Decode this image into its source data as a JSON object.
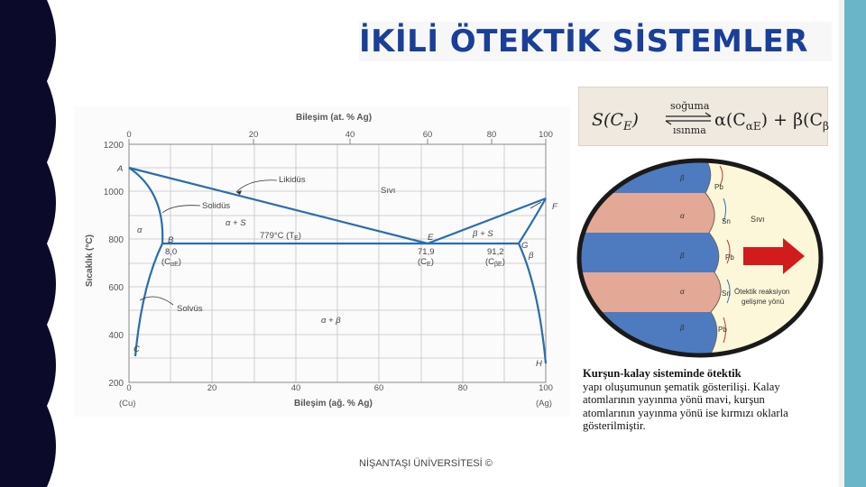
{
  "title": "İKİLİ ÖTEKTİK SİSTEMLER",
  "equation": {
    "lhs": "S(C",
    "lhs_sub": "E",
    "lhs_close": ")",
    "arrow_top": "soğuma",
    "arrow_bottom": "ısınma",
    "rhs_alpha": "α(C",
    "rhs_alpha_sub": "αE",
    "rhs_plus": ") + β(C",
    "rhs_beta_sub": "βE",
    "rhs_close": ")"
  },
  "diagram": {
    "top_axis_title": "Bileşim (at. % Ag)",
    "top_ticks": [
      "0",
      "20",
      "40",
      "60",
      "80",
      "100"
    ],
    "bottom_axis_title": "Bileşim (ağ. % Ag)",
    "bottom_ticks": [
      "0",
      "20",
      "40",
      "60",
      "80",
      "100"
    ],
    "bottom_left_end": "(Cu)",
    "bottom_right_end": "(Ag)",
    "y_axis_title": "Sıcaklık (°C)",
    "y_ticks": [
      "1200",
      "1000",
      "800",
      "600",
      "400",
      "200"
    ],
    "labels": {
      "likidus": "Likidüs",
      "solidus": "Solidüs",
      "solvus": "Solvüs",
      "liquid": "Sıvı",
      "alpha": "α",
      "beta": "β",
      "alpha_s": "α + S",
      "beta_s": "β + S",
      "alpha_beta": "α + β",
      "eutectic_temp": "779°C (T",
      "eutectic_temp_sub": "E",
      "eutectic_temp_close": ")",
      "point_A": "A",
      "point_B": "B",
      "point_C": "C",
      "point_E": "E",
      "point_F": "F",
      "point_G": "G",
      "point_H": "H",
      "comp_B": "8,0",
      "comp_B_label": "(C",
      "comp_B_sub": "αE",
      "comp_B_close": ")",
      "comp_E": "71,9",
      "comp_E_label": "(C",
      "comp_E_sub": "E",
      "comp_E_close": ")",
      "comp_G": "91,2",
      "comp_G_label": "(C",
      "comp_G_sub": "βE",
      "comp_G_close": ")"
    }
  },
  "eutectic_figure": {
    "liquid": "Sıvı",
    "lamella_labels": [
      "β",
      "α",
      "β",
      "α",
      "β"
    ],
    "atom_labels": [
      "Pb",
      "Sn",
      "Pb",
      "Sn",
      "Pb"
    ],
    "growth_text_1": "Ötektik reaksiyon",
    "growth_text_2": "gelişme yönü"
  },
  "caption": [
    "Kurşun-kalay sisteminde ötektik",
    "yapı oluşumunun şematik gösterilişi. Kalay",
    "atomlarının yayınma yönü mavi, kurşun",
    "atomlarının yayınma yönü ise kırmızı oklarla",
    "gösterilmiştir."
  ],
  "footer": "NİŞANTAŞI ÜNİVERSİTESİ ©",
  "colors": {
    "title": "#1a3f99",
    "left_band": "#0c0a2a",
    "right_band": "#6ab5c8",
    "phase_line": "#2a6db0",
    "alpha_lamella": "#e4a896",
    "beta_lamella": "#4e7bc0",
    "liquid_bg": "#fcf7d8",
    "growth_arrow": "#d21c1c"
  }
}
